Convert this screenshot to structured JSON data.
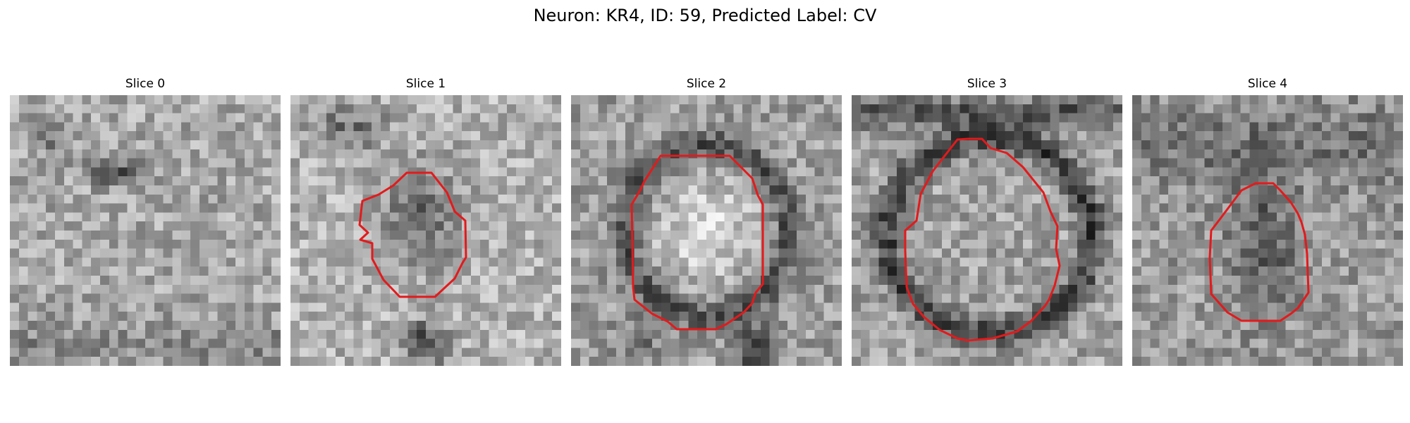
{
  "figure": {
    "title": "Neuron: KR4, ID: 59, Predicted Label: CV",
    "outline_color": "#e31a1c",
    "image_colormap": "grayscale",
    "image_grid": [
      30,
      30
    ]
  },
  "panels": [
    {
      "title": "Slice 0",
      "has_outline": false
    },
    {
      "title": "Slice 1",
      "has_outline": true
    },
    {
      "title": "Slice 2",
      "has_outline": true
    },
    {
      "title": "Slice 3",
      "has_outline": true
    },
    {
      "title": "Slice 4",
      "has_outline": true
    }
  ]
}
